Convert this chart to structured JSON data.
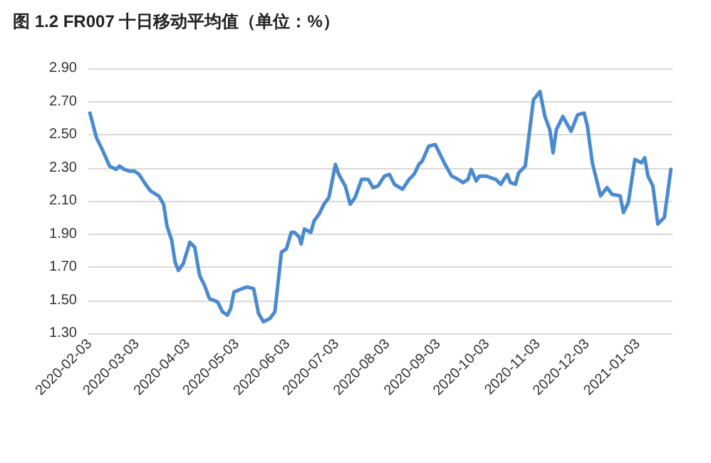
{
  "chart_data": {
    "type": "line",
    "title": "图 1.2 FR007 十日移动平均值（单位：%）",
    "x": [
      "2020-02-03",
      "2020-02-07",
      "2020-02-10",
      "2020-02-15",
      "2020-02-19",
      "2020-02-21",
      "2020-02-24",
      "2020-02-27",
      "2020-03-01",
      "2020-03-04",
      "2020-03-08",
      "2020-03-11",
      "2020-03-16",
      "2020-03-19",
      "2020-03-21",
      "2020-03-24",
      "2020-03-26",
      "2020-03-28",
      "2020-03-31",
      "2020-04-04",
      "2020-04-07",
      "2020-04-10",
      "2020-04-13",
      "2020-04-16",
      "2020-04-21",
      "2020-04-24",
      "2020-04-27",
      "2020-04-29",
      "2020-05-01",
      "2020-05-06",
      "2020-05-09",
      "2020-05-13",
      "2020-05-16",
      "2020-05-19",
      "2020-05-23",
      "2020-05-26",
      "2020-05-30",
      "2020-06-02",
      "2020-06-05",
      "2020-06-07",
      "2020-06-10",
      "2020-06-11",
      "2020-06-13",
      "2020-06-17",
      "2020-06-19",
      "2020-06-22",
      "2020-06-25",
      "2020-06-28",
      "2020-07-02",
      "2020-07-04",
      "2020-07-08",
      "2020-07-11",
      "2020-07-14",
      "2020-07-18",
      "2020-07-22",
      "2020-07-25",
      "2020-07-28",
      "2020-08-01",
      "2020-08-04",
      "2020-08-07",
      "2020-08-12",
      "2020-08-16",
      "2020-08-19",
      "2020-08-22",
      "2020-08-24",
      "2020-08-28",
      "2020-09-01",
      "2020-09-05",
      "2020-09-07",
      "2020-09-11",
      "2020-09-15",
      "2020-09-18",
      "2020-09-21",
      "2020-09-23",
      "2020-09-26",
      "2020-09-28",
      "2020-10-02",
      "2020-10-08",
      "2020-10-11",
      "2020-10-15",
      "2020-10-17",
      "2020-10-20",
      "2020-10-22",
      "2020-10-26",
      "2020-10-31",
      "2020-11-04",
      "2020-11-07",
      "2020-11-10",
      "2020-11-12",
      "2020-11-14",
      "2020-11-18",
      "2020-11-23",
      "2020-11-27",
      "2020-12-01",
      "2020-12-03",
      "2020-12-06",
      "2020-12-11",
      "2020-12-15",
      "2020-12-18",
      "2020-12-23",
      "2020-12-25",
      "2020-12-28",
      "2021-01-01",
      "2021-01-05",
      "2021-01-07",
      "2021-01-09",
      "2021-01-12",
      "2021-01-15",
      "2021-01-19",
      "2021-01-23"
    ],
    "series": [
      {
        "color": "#4a8ad0",
        "values": [
          2.63,
          2.48,
          2.42,
          2.31,
          2.29,
          2.31,
          2.29,
          2.28,
          2.28,
          2.26,
          2.2,
          2.16,
          2.13,
          2.08,
          1.95,
          1.86,
          1.73,
          1.68,
          1.72,
          1.85,
          1.82,
          1.65,
          1.59,
          1.51,
          1.49,
          1.43,
          1.41,
          1.45,
          1.55,
          1.57,
          1.58,
          1.57,
          1.42,
          1.37,
          1.39,
          1.43,
          1.79,
          1.81,
          1.91,
          1.91,
          1.88,
          1.84,
          1.93,
          1.91,
          1.98,
          2.02,
          2.08,
          2.12,
          2.32,
          2.26,
          2.19,
          2.08,
          2.12,
          2.23,
          2.23,
          2.18,
          2.19,
          2.25,
          2.26,
          2.2,
          2.17,
          2.23,
          2.26,
          2.32,
          2.34,
          2.43,
          2.44,
          2.36,
          2.32,
          2.25,
          2.23,
          2.21,
          2.23,
          2.29,
          2.22,
          2.25,
          2.25,
          2.23,
          2.2,
          2.26,
          2.21,
          2.2,
          2.27,
          2.31,
          2.71,
          2.76,
          2.61,
          2.53,
          2.39,
          2.53,
          2.61,
          2.52,
          2.62,
          2.63,
          2.55,
          2.33,
          2.13,
          2.18,
          2.14,
          2.13,
          2.03,
          2.09,
          2.35,
          2.33,
          2.36,
          2.25,
          2.19,
          1.96,
          2.0,
          2.29
        ]
      }
    ],
    "xlim": [
      "2020-02-02",
      "2021-01-24"
    ],
    "xticks": [
      "2020-02-03",
      "2020-03-03",
      "2020-04-03",
      "2020-05-03",
      "2020-06-03",
      "2020-07-03",
      "2020-08-03",
      "2020-09-03",
      "2020-10-03",
      "2020-11-03",
      "2020-12-03",
      "2021-01-03"
    ],
    "ylim": [
      1.3,
      2.9
    ],
    "yticks": [
      {
        "value": 1.3,
        "label": "1.30"
      },
      {
        "value": 1.5,
        "label": "1.50"
      },
      {
        "value": 1.7,
        "label": "1.70"
      },
      {
        "value": 1.9,
        "label": "1.90"
      },
      {
        "value": 2.1,
        "label": "2.10"
      },
      {
        "value": 2.3,
        "label": "2.30"
      },
      {
        "value": 2.5,
        "label": "2.50"
      },
      {
        "value": 2.7,
        "label": "2.70"
      },
      {
        "value": 2.9,
        "label": "2.90"
      }
    ],
    "grid": "y",
    "marker": "none",
    "line_style": "solid"
  }
}
